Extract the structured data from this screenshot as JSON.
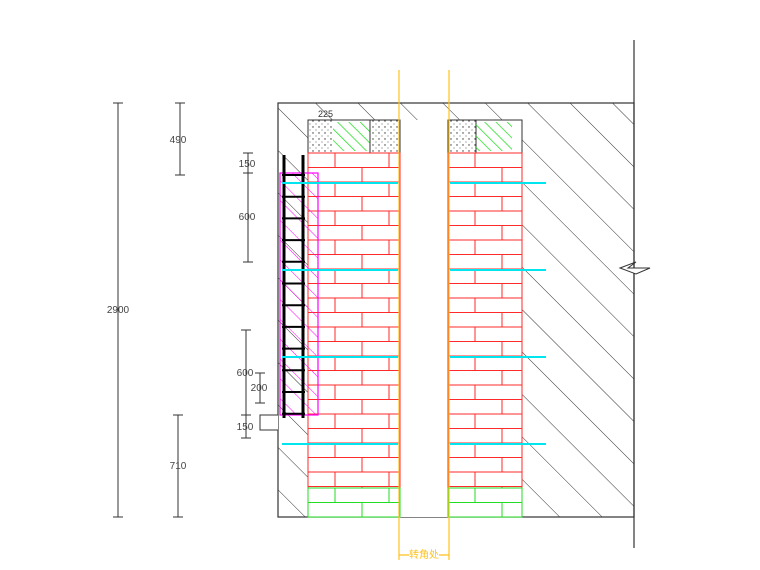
{
  "dimensions": {
    "total": "2900",
    "top": "490",
    "upper_small": "150",
    "upper_spacing": "600",
    "lower_spacing": "600",
    "lower_inner": "200",
    "lower_small": "150",
    "bottom": "710",
    "cap_width": "225"
  },
  "annotation": {
    "corner_label": "转角处"
  },
  "colors": {
    "brick": "#ff2a2a",
    "base_brick": "#22dd22",
    "tie_bar": "#00e5ee",
    "insulation": "#ff00ff",
    "guide_line": "#ffc21a",
    "line": "#333333"
  }
}
